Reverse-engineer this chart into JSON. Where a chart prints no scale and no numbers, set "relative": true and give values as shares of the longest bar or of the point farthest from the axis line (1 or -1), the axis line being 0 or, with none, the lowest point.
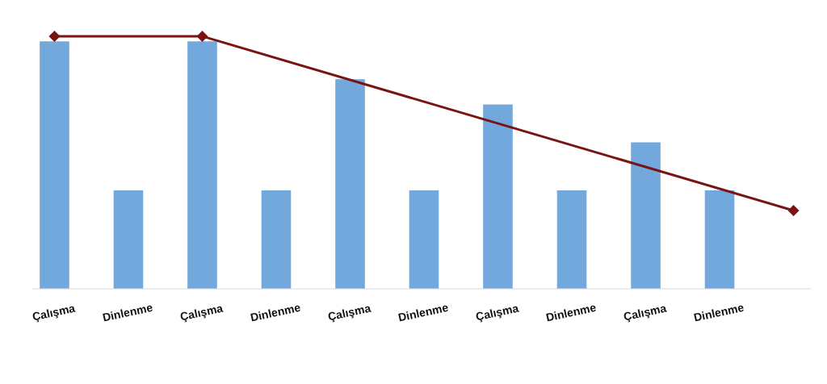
{
  "chart_data": {
    "type": "bar",
    "relative": true,
    "categories": [
      "Çalışma",
      "Dinlenme",
      "Çalışma",
      "Dinlenme",
      "Çalışma",
      "Dinlenme",
      "Çalışma",
      "Dinlenme",
      "Çalışma",
      "Dinlenme",
      null
    ],
    "series": [
      {
        "color": "#72a8dc",
        "values": [
          0.98,
          0.39,
          0.98,
          0.39,
          0.83,
          0.39,
          0.73,
          0.39,
          0.58,
          0.39,
          null
        ]
      },
      {
        "type": "line",
        "color": "#7a1414",
        "marker": "diamond",
        "values": [
          1,
          null,
          1,
          null,
          null,
          null,
          null,
          null,
          null,
          null,
          0.31
        ]
      }
    ]
  }
}
